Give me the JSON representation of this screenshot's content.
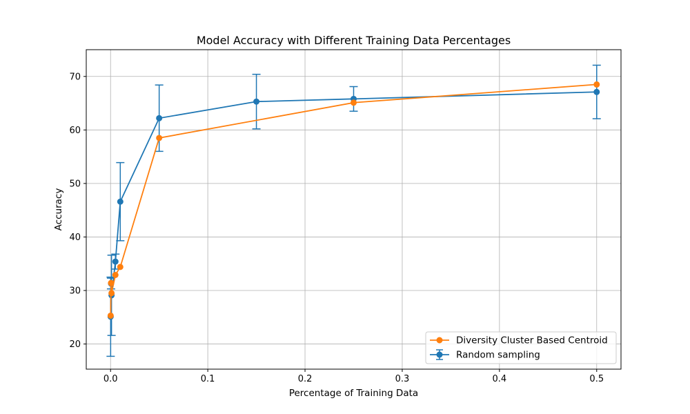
{
  "chart_data": {
    "type": "line",
    "title": "Model Accuracy with Different Training Data Percentages",
    "xlabel": "Percentage of Training Data",
    "ylabel": "Accuracy",
    "xlim": [
      -0.025,
      0.525
    ],
    "ylim": [
      15.3,
      75.0
    ],
    "x_ticks": [
      0.0,
      0.1,
      0.2,
      0.3,
      0.4,
      0.5
    ],
    "x_tick_labels": [
      "0.0",
      "0.1",
      "0.2",
      "0.3",
      "0.4",
      "0.5"
    ],
    "y_ticks": [
      20,
      30,
      40,
      50,
      60,
      70
    ],
    "y_tick_labels": [
      "20",
      "30",
      "40",
      "50",
      "60",
      "70"
    ],
    "grid": true,
    "legend_position": "lower right",
    "series": [
      {
        "name": "Random sampling",
        "color": "#1f77b4",
        "marker": "circle",
        "error_bars": true,
        "x": [
          0.0001,
          0.0005,
          0.001,
          0.005,
          0.01,
          0.05,
          0.15,
          0.25,
          0.5
        ],
        "y": [
          25.1,
          31.3,
          29.1,
          35.4,
          46.6,
          62.2,
          65.3,
          65.8,
          67.1
        ],
        "err": [
          7.4,
          1.0,
          7.5,
          1.4,
          7.3,
          6.2,
          5.1,
          2.3,
          5.0
        ]
      },
      {
        "name": "Diversity Cluster Based Centroid",
        "color": "#ff7f0e",
        "marker": "circle",
        "error_bars": false,
        "x": [
          0.0001,
          0.0005,
          0.001,
          0.005,
          0.01,
          0.05,
          0.15,
          0.25,
          0.5
        ],
        "y": [
          25.3,
          31.4,
          29.5,
          32.9,
          34.4,
          58.5,
          null,
          65.1,
          68.5
        ]
      }
    ]
  }
}
